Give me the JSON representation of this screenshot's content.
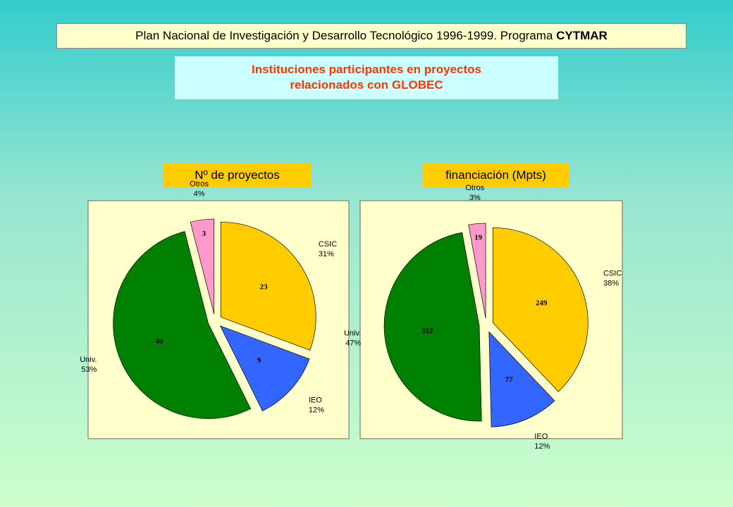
{
  "header": {
    "text": "Plan Nacional de Investigación y Desarrollo Tecnológico 1996-1999. Programa",
    "bold": "CYTMAR"
  },
  "subtitle": {
    "lines": [
      "Instituciones participantes en proyectos",
      "relacionados con GLOBEC"
    ]
  },
  "chart_data": [
    {
      "type": "pie",
      "title": "Nº de proyectos",
      "categories": [
        "CSIC",
        "IEO",
        "Univ.",
        "Otros"
      ],
      "values": [
        23,
        9,
        40,
        3
      ],
      "percent_labels": [
        "31%",
        "12%",
        "53%",
        "4%"
      ],
      "colors": [
        "#ffcc00",
        "#3366ff",
        "#008000",
        "#ff99cc"
      ]
    },
    {
      "type": "pie",
      "title": "financiación (Mpts)",
      "categories": [
        "CSIC",
        "IEO",
        "Univ.",
        "Otros"
      ],
      "values": [
        249,
        77,
        312,
        19
      ],
      "percent_labels": [
        "38%",
        "12%",
        "47%",
        "3%"
      ],
      "colors": [
        "#ffcc00",
        "#3366ff",
        "#008000",
        "#ff99cc"
      ]
    }
  ]
}
